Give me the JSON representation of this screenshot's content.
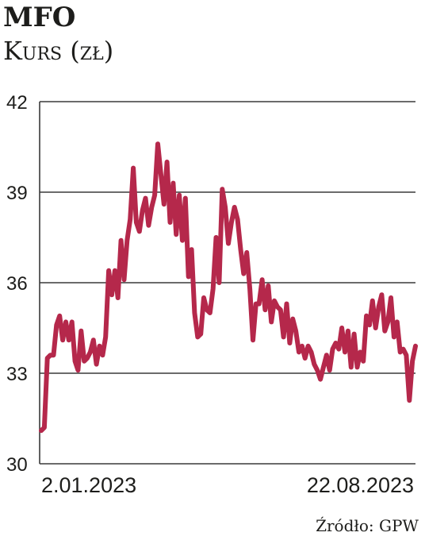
{
  "chart_data": {
    "type": "line",
    "title": "MFO",
    "subtitle": "Kurs (zł)",
    "source": "Źródło: GPW",
    "y_ticks": [
      "42",
      "39",
      "36",
      "33",
      "30"
    ],
    "ylim": [
      30,
      42
    ],
    "x_labels": [
      "2.01.2023",
      "22.08.2023"
    ],
    "grid": "horizontal",
    "color": "#b5284b",
    "series": [
      {
        "values": [
          31.1,
          31.2,
          33.5,
          33.6,
          33.6,
          34.6,
          34.9,
          34.1,
          34.7,
          34.1,
          34.7,
          33.4,
          33.1,
          34.4,
          33.4,
          33.5,
          33.7,
          34.1,
          33.3,
          33.9,
          33.6,
          34.2,
          36.4,
          35.6,
          36.4,
          35.5,
          37.4,
          36.1,
          37.4,
          38.1,
          39.8,
          38.0,
          37.7,
          38.4,
          38.8,
          37.9,
          38.5,
          38.9,
          40.6,
          39.6,
          38.6,
          40.0,
          38.0,
          39.3,
          37.6,
          38.9,
          37.4,
          38.8,
          36.2,
          37.1,
          35.0,
          34.2,
          34.3,
          35.5,
          35.1,
          35.0,
          35.8,
          37.5,
          36.0,
          39.1,
          38.5,
          37.3,
          38.0,
          38.5,
          38.1,
          37.1,
          36.3,
          37.0,
          35.8,
          34.1,
          35.3,
          35.3,
          36.1,
          35.1,
          35.9,
          34.7,
          35.4,
          35.2,
          35.1,
          34.2,
          35.3,
          34.0,
          34.8,
          34.4,
          33.7,
          33.9,
          33.5,
          33.9,
          33.7,
          33.3,
          33.1,
          32.8,
          33.2,
          33.6,
          33.1,
          33.8,
          34.0,
          33.8,
          34.5,
          33.7,
          34.4,
          33.2,
          34.3,
          33.2,
          33.7,
          33.4,
          34.9,
          34.6,
          35.4,
          34.5,
          35.2,
          35.6,
          34.4,
          34.7,
          35.5,
          34.2,
          34.7,
          33.7,
          33.8,
          33.6,
          32.1,
          33.4,
          33.9
        ]
      }
    ]
  }
}
